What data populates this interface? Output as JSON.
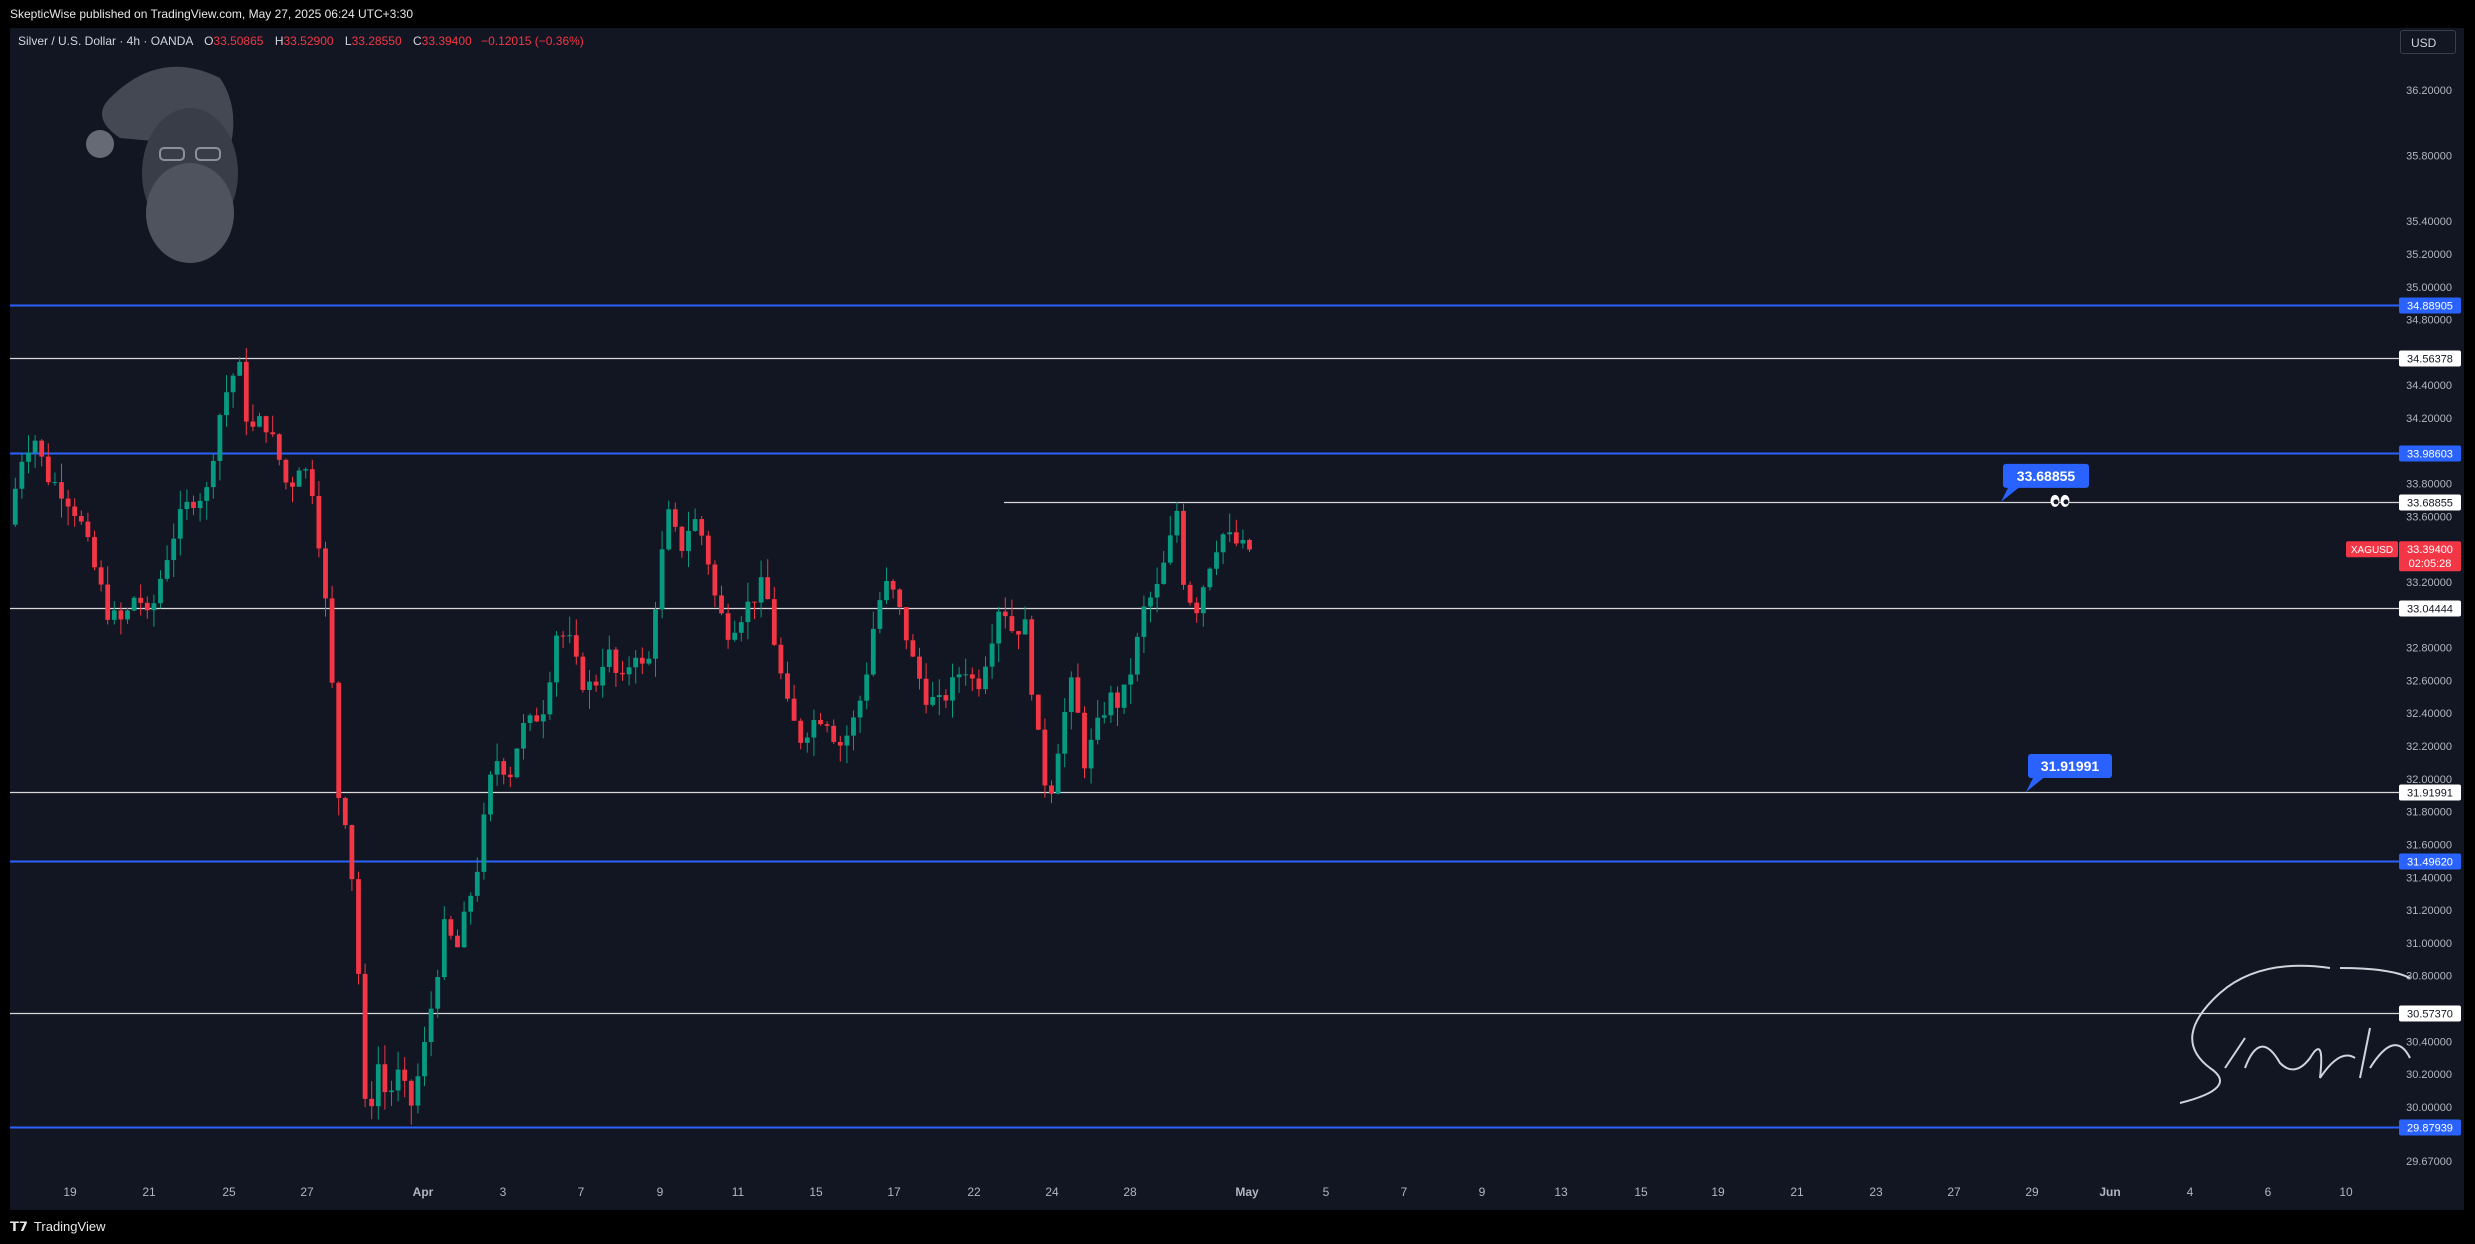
{
  "header": {
    "published_text": "SkepticWise published on TradingView.com, May 27, 2025 06:24 UTC+3:30"
  },
  "legend": {
    "symbol_line": "Silver / U.S. Dollar · 4h · OANDA",
    "open_label": "O",
    "open_value": "33.50865",
    "high_label": "H",
    "high_value": "33.52900",
    "low_label": "L",
    "low_value": "33.28550",
    "close_label": "C",
    "close_value": "33.39400",
    "change": "−0.12015 (−0.36%)"
  },
  "currency": "USD",
  "footer": {
    "brand": "TradingView"
  },
  "colors": {
    "background": "#121622",
    "up": "#089981",
    "down": "#f23645",
    "blue_level": "#2962ff",
    "white_level": "#d9d9d9"
  },
  "chart_data": {
    "type": "candlestick",
    "symbol": "XAGUSD",
    "yaxis_ticks": [
      "36.20000",
      "35.80000",
      "35.40000",
      "35.20000",
      "35.00000",
      "34.80000",
      "34.40000",
      "34.20000",
      "33.80000",
      "33.60000",
      "33.20000",
      "32.80000",
      "32.60000",
      "32.40000",
      "32.20000",
      "32.00000",
      "31.80000",
      "31.60000",
      "31.40000",
      "31.20000",
      "31.00000",
      "30.80000",
      "30.40000",
      "30.20000",
      "30.00000",
      "29.67000"
    ],
    "ylim": [
      29.6,
      36.4
    ],
    "xaxis_ticks": [
      "19",
      "21",
      "25",
      "27",
      "Apr",
      "3",
      "7",
      "9",
      "11",
      "15",
      "17",
      "22",
      "24",
      "28",
      "May",
      "5",
      "7",
      "9",
      "13",
      "15",
      "19",
      "21",
      "23",
      "27",
      "29",
      "Jun",
      "4",
      "6",
      "10"
    ],
    "levels": [
      {
        "value": 34.88905,
        "label": "34.88905",
        "color": "blue"
      },
      {
        "value": 34.56378,
        "label": "34.56378",
        "color": "white"
      },
      {
        "value": 33.98603,
        "label": "33.98603",
        "color": "blue"
      },
      {
        "value": 33.68855,
        "label": "33.68855",
        "color": "white"
      },
      {
        "value": 33.04444,
        "label": "33.04444",
        "color": "white"
      },
      {
        "value": 31.91991,
        "label": "31.91991",
        "color": "white"
      },
      {
        "value": 31.4962,
        "label": "31.49620",
        "color": "blue"
      },
      {
        "value": 30.5737,
        "label": "30.57370",
        "color": "white"
      },
      {
        "value": 29.87939,
        "label": "29.87939",
        "color": "blue"
      }
    ],
    "price_tag": {
      "symbol": "XAGUSD",
      "value": "33.39400",
      "countdown": "02:05:28"
    },
    "callouts": [
      {
        "text": "33.68855",
        "value": 33.68855
      },
      {
        "text": "31.91991",
        "value": 31.91991
      }
    ],
    "price_path": [
      [
        0,
        33.55
      ],
      [
        12,
        33.95
      ],
      [
        25,
        34.1
      ],
      [
        38,
        33.85
      ],
      [
        55,
        33.75
      ],
      [
        70,
        33.6
      ],
      [
        85,
        33.3
      ],
      [
        100,
        33.0
      ],
      [
        115,
        32.95
      ],
      [
        128,
        33.15
      ],
      [
        140,
        32.95
      ],
      [
        155,
        33.3
      ],
      [
        168,
        33.55
      ],
      [
        182,
        33.7
      ],
      [
        198,
        33.75
      ],
      [
        210,
        34.2
      ],
      [
        222,
        34.45
      ],
      [
        232,
        34.5
      ],
      [
        240,
        34.1
      ],
      [
        255,
        34.2
      ],
      [
        268,
        34.0
      ],
      [
        280,
        33.75
      ],
      [
        292,
        33.95
      ],
      [
        305,
        33.75
      ],
      [
        315,
        33.2
      ],
      [
        322,
        32.7
      ],
      [
        330,
        31.9
      ],
      [
        340,
        31.7
      ],
      [
        350,
        30.8
      ],
      [
        358,
        29.8
      ],
      [
        368,
        30.3
      ],
      [
        378,
        30.05
      ],
      [
        390,
        30.2
      ],
      [
        402,
        30.0
      ],
      [
        414,
        30.3
      ],
      [
        425,
        30.7
      ],
      [
        436,
        31.1
      ],
      [
        448,
        30.95
      ],
      [
        458,
        31.2
      ],
      [
        470,
        31.5
      ],
      [
        480,
        31.95
      ],
      [
        490,
        32.15
      ],
      [
        500,
        32.0
      ],
      [
        512,
        32.3
      ],
      [
        524,
        32.35
      ],
      [
        536,
        32.45
      ],
      [
        548,
        32.9
      ],
      [
        560,
        32.85
      ],
      [
        572,
        32.6
      ],
      [
        585,
        32.55
      ],
      [
        598,
        32.8
      ],
      [
        612,
        32.55
      ],
      [
        626,
        32.8
      ],
      [
        638,
        32.6
      ],
      [
        650,
        33.25
      ],
      [
        660,
        33.6
      ],
      [
        672,
        33.4
      ],
      [
        684,
        33.6
      ],
      [
        696,
        33.45
      ],
      [
        708,
        33.05
      ],
      [
        720,
        32.9
      ],
      [
        732,
        33.0
      ],
      [
        744,
        33.1
      ],
      [
        756,
        33.2
      ],
      [
        768,
        32.75
      ],
      [
        780,
        32.4
      ],
      [
        792,
        32.25
      ],
      [
        804,
        32.35
      ],
      [
        816,
        32.4
      ],
      [
        830,
        32.2
      ],
      [
        842,
        32.3
      ],
      [
        855,
        32.55
      ],
      [
        868,
        33.05
      ],
      [
        880,
        33.2
      ],
      [
        892,
        33.0
      ],
      [
        905,
        32.7
      ],
      [
        918,
        32.5
      ],
      [
        930,
        32.45
      ],
      [
        942,
        32.55
      ],
      [
        955,
        32.7
      ],
      [
        968,
        32.55
      ],
      [
        980,
        32.8
      ],
      [
        992,
        33.1
      ],
      [
        1004,
        32.9
      ],
      [
        1016,
        32.95
      ],
      [
        1028,
        32.3
      ],
      [
        1040,
        31.85
      ],
      [
        1052,
        32.3
      ],
      [
        1064,
        32.6
      ],
      [
        1076,
        32.1
      ],
      [
        1088,
        32.3
      ],
      [
        1100,
        32.5
      ],
      [
        1112,
        32.45
      ],
      [
        1124,
        32.7
      ],
      [
        1136,
        33.05
      ],
      [
        1148,
        33.15
      ],
      [
        1160,
        33.4
      ],
      [
        1168,
        33.65
      ],
      [
        1176,
        33.15
      ],
      [
        1188,
        33.05
      ],
      [
        1200,
        33.3
      ],
      [
        1212,
        33.5
      ],
      [
        1224,
        33.45
      ],
      [
        1236,
        33.4
      ]
    ]
  }
}
